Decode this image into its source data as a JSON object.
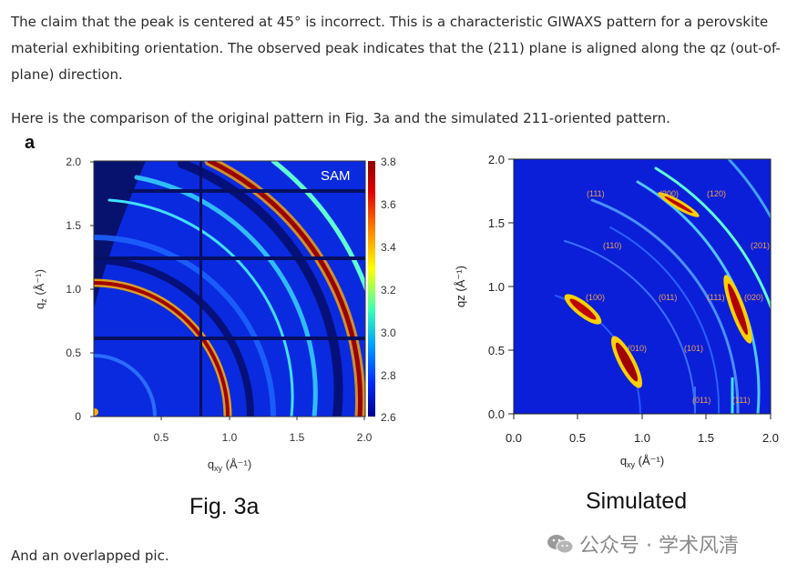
{
  "paragraphs": {
    "p1": "The claim that the peak is centered at 45° is incorrect. This is a characteristic GIWAXS pattern for a perovskite material exhibiting orientation. The observed peak indicates that the (211) plane is aligned along the qz (out-of-plane) direction.",
    "p2": "Here is the comparison of the original pattern in Fig. 3a and the simulated 211-oriented pattern.",
    "p3": "And an overlapped pic."
  },
  "figure_a": {
    "panel_letter": "a",
    "label": "SAM",
    "x_ticks": [
      "0.5",
      "1.0",
      "1.5",
      "2.0"
    ],
    "y_ticks": [
      "0",
      "0.5",
      "1.0",
      "1.5",
      "2.0"
    ],
    "x_axis_label": "q",
    "x_axis_sub": "xy",
    "x_axis_unit": " (Å⁻¹)",
    "y_axis_label": "q",
    "y_axis_sub": "z",
    "y_axis_unit": " (Å⁻¹)",
    "colorbar_ticks": [
      "3.8",
      "3.6",
      "3.4",
      "3.2",
      "3.0",
      "2.8",
      "2.6"
    ],
    "caption": "Fig. 3a"
  },
  "figure_sim": {
    "x_ticks": [
      "0.0",
      "0.5",
      "1.0",
      "1.5",
      "2.0"
    ],
    "y_ticks": [
      "0.0",
      "0.5",
      "1.0",
      "1.5",
      "2.0"
    ],
    "x_axis_label": "q",
    "x_axis_sub": "xy",
    "x_axis_unit": " (Å⁻¹)",
    "y_axis_label": "qz (Å⁻¹)",
    "peak_labels": [
      "(111)",
      "(200)",
      "(120)",
      "(110)",
      "(201)",
      "(100)",
      "(011)",
      "(111)",
      "(020)",
      "(010)",
      "(101)",
      "(011)",
      "(111)"
    ],
    "caption": "Simulated"
  },
  "watermark": {
    "text": "公众号 · 学术风清",
    "icon": "wechat-icon"
  }
}
